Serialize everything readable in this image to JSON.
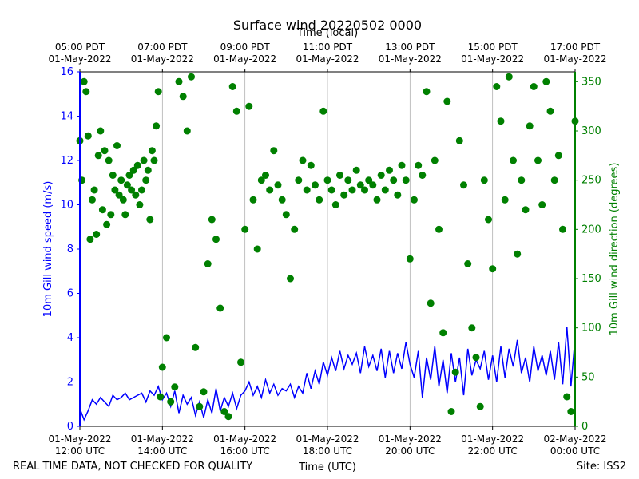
{
  "chart_data": {
    "type": "scatter",
    "title": "Surface wind 20220502 0000",
    "top_axis_label": "Time (local)",
    "xlabel": "Time (UTC)",
    "ylabel_left": "10m Gill wind speed (m/s)",
    "ylabel_right": "10m Gill wind direction (degrees)",
    "footer_left": "REAL TIME DATA, NOT CHECKED FOR QUALITY",
    "footer_right": "Site: ISS2",
    "x_range_hours": [
      12,
      24
    ],
    "ylim_left": [
      0,
      16
    ],
    "ylim_right": [
      0,
      360
    ],
    "left_ticks": [
      "0",
      "2",
      "4",
      "6",
      "8",
      "10",
      "12",
      "14",
      "16"
    ],
    "right_ticks": [
      "0",
      "50",
      "100",
      "150",
      "200",
      "250",
      "300",
      "350"
    ],
    "bottom_ticks": [
      {
        "hour": 12,
        "line1": "01-May-2022",
        "line2": "12:00 UTC"
      },
      {
        "hour": 14,
        "line1": "01-May-2022",
        "line2": "14:00 UTC"
      },
      {
        "hour": 16,
        "line1": "01-May-2022",
        "line2": "16:00 UTC"
      },
      {
        "hour": 18,
        "line1": "01-May-2022",
        "line2": "18:00 UTC"
      },
      {
        "hour": 20,
        "line1": "01-May-2022",
        "line2": "20:00 UTC"
      },
      {
        "hour": 22,
        "line1": "01-May-2022",
        "line2": "22:00 UTC"
      },
      {
        "hour": 24,
        "line1": "02-May-2022",
        "line2": "00:00 UTC"
      }
    ],
    "top_ticks": [
      {
        "hour": 12,
        "line1": "05:00 PDT",
        "line2": "01-May-2022"
      },
      {
        "hour": 14,
        "line1": "07:00 PDT",
        "line2": "01-May-2022"
      },
      {
        "hour": 16,
        "line1": "09:00 PDT",
        "line2": "01-May-2022"
      },
      {
        "hour": 18,
        "line1": "11:00 PDT",
        "line2": "01-May-2022"
      },
      {
        "hour": 20,
        "line1": "13:00 PDT",
        "line2": "01-May-2022"
      },
      {
        "hour": 22,
        "line1": "15:00 PDT",
        "line2": "01-May-2022"
      },
      {
        "hour": 24,
        "line1": "17:00 PDT",
        "line2": "01-May-2022"
      }
    ],
    "grid": "vertical",
    "series": [
      {
        "name": "10m Gill wind speed (m/s)",
        "axis": "left",
        "style": "line",
        "color": "#0000ff",
        "points": [
          [
            12.0,
            0.8
          ],
          [
            12.1,
            0.3
          ],
          [
            12.2,
            0.7
          ],
          [
            12.3,
            1.2
          ],
          [
            12.4,
            1.0
          ],
          [
            12.5,
            1.3
          ],
          [
            12.6,
            1.1
          ],
          [
            12.7,
            0.9
          ],
          [
            12.8,
            1.4
          ],
          [
            12.9,
            1.2
          ],
          [
            13.0,
            1.3
          ],
          [
            13.1,
            1.5
          ],
          [
            13.2,
            1.2
          ],
          [
            13.3,
            1.3
          ],
          [
            13.4,
            1.4
          ],
          [
            13.5,
            1.5
          ],
          [
            13.6,
            1.1
          ],
          [
            13.7,
            1.6
          ],
          [
            13.8,
            1.4
          ],
          [
            13.9,
            1.8
          ],
          [
            14.0,
            1.2
          ],
          [
            14.1,
            1.5
          ],
          [
            14.2,
            0.9
          ],
          [
            14.3,
            1.6
          ],
          [
            14.4,
            0.6
          ],
          [
            14.5,
            1.4
          ],
          [
            14.6,
            1.0
          ],
          [
            14.7,
            1.3
          ],
          [
            14.8,
            0.5
          ],
          [
            14.9,
            1.1
          ],
          [
            15.0,
            0.4
          ],
          [
            15.1,
            1.2
          ],
          [
            15.2,
            0.6
          ],
          [
            15.3,
            1.7
          ],
          [
            15.4,
            0.7
          ],
          [
            15.5,
            1.3
          ],
          [
            15.6,
            0.9
          ],
          [
            15.7,
            1.5
          ],
          [
            15.8,
            0.8
          ],
          [
            15.9,
            1.4
          ],
          [
            16.0,
            1.6
          ],
          [
            16.1,
            2.0
          ],
          [
            16.2,
            1.4
          ],
          [
            16.3,
            1.8
          ],
          [
            16.4,
            1.3
          ],
          [
            16.5,
            2.1
          ],
          [
            16.6,
            1.5
          ],
          [
            16.7,
            1.9
          ],
          [
            16.8,
            1.4
          ],
          [
            16.9,
            1.7
          ],
          [
            17.0,
            1.6
          ],
          [
            17.1,
            1.9
          ],
          [
            17.2,
            1.3
          ],
          [
            17.3,
            1.8
          ],
          [
            17.4,
            1.5
          ],
          [
            17.5,
            2.4
          ],
          [
            17.6,
            1.7
          ],
          [
            17.7,
            2.5
          ],
          [
            17.8,
            1.9
          ],
          [
            17.9,
            2.9
          ],
          [
            18.0,
            2.3
          ],
          [
            18.1,
            3.1
          ],
          [
            18.2,
            2.5
          ],
          [
            18.3,
            3.4
          ],
          [
            18.4,
            2.6
          ],
          [
            18.5,
            3.2
          ],
          [
            18.6,
            2.8
          ],
          [
            18.7,
            3.3
          ],
          [
            18.8,
            2.4
          ],
          [
            18.9,
            3.6
          ],
          [
            19.0,
            2.7
          ],
          [
            19.1,
            3.2
          ],
          [
            19.2,
            2.5
          ],
          [
            19.3,
            3.5
          ],
          [
            19.4,
            2.2
          ],
          [
            19.5,
            3.4
          ],
          [
            19.6,
            2.4
          ],
          [
            19.7,
            3.3
          ],
          [
            19.8,
            2.6
          ],
          [
            19.9,
            3.8
          ],
          [
            20.0,
            2.8
          ],
          [
            20.1,
            2.2
          ],
          [
            20.2,
            3.4
          ],
          [
            20.3,
            1.3
          ],
          [
            20.4,
            3.1
          ],
          [
            20.5,
            2.1
          ],
          [
            20.6,
            3.6
          ],
          [
            20.7,
            1.8
          ],
          [
            20.8,
            3.0
          ],
          [
            20.9,
            1.5
          ],
          [
            21.0,
            3.3
          ],
          [
            21.1,
            2.0
          ],
          [
            21.2,
            3.1
          ],
          [
            21.3,
            1.4
          ],
          [
            21.4,
            3.5
          ],
          [
            21.5,
            2.3
          ],
          [
            21.6,
            3.0
          ],
          [
            21.7,
            2.6
          ],
          [
            21.8,
            3.4
          ],
          [
            21.9,
            2.1
          ],
          [
            22.0,
            3.2
          ],
          [
            22.1,
            2.0
          ],
          [
            22.2,
            3.6
          ],
          [
            22.3,
            2.2
          ],
          [
            22.4,
            3.5
          ],
          [
            22.5,
            2.7
          ],
          [
            22.6,
            3.9
          ],
          [
            22.7,
            2.4
          ],
          [
            22.8,
            3.1
          ],
          [
            22.9,
            2.0
          ],
          [
            23.0,
            3.6
          ],
          [
            23.1,
            2.5
          ],
          [
            23.2,
            3.2
          ],
          [
            23.3,
            2.3
          ],
          [
            23.4,
            3.4
          ],
          [
            23.5,
            2.1
          ],
          [
            23.6,
            3.8
          ],
          [
            23.7,
            1.9
          ],
          [
            23.8,
            4.5
          ],
          [
            23.9,
            1.8
          ],
          [
            24.0,
            4.0
          ]
        ]
      },
      {
        "name": "10m Gill wind direction (degrees)",
        "axis": "right",
        "style": "markers",
        "color": "#008000",
        "points": [
          [
            12.0,
            290
          ],
          [
            12.05,
            250
          ],
          [
            12.1,
            350
          ],
          [
            12.15,
            340
          ],
          [
            12.2,
            295
          ],
          [
            12.25,
            190
          ],
          [
            12.3,
            230
          ],
          [
            12.35,
            240
          ],
          [
            12.4,
            195
          ],
          [
            12.45,
            275
          ],
          [
            12.5,
            300
          ],
          [
            12.55,
            220
          ],
          [
            12.6,
            280
          ],
          [
            12.65,
            205
          ],
          [
            12.7,
            270
          ],
          [
            12.75,
            215
          ],
          [
            12.8,
            255
          ],
          [
            12.85,
            240
          ],
          [
            12.9,
            285
          ],
          [
            12.95,
            235
          ],
          [
            13.0,
            250
          ],
          [
            13.05,
            230
          ],
          [
            13.1,
            215
          ],
          [
            13.15,
            245
          ],
          [
            13.2,
            255
          ],
          [
            13.25,
            240
          ],
          [
            13.3,
            260
          ],
          [
            13.35,
            235
          ],
          [
            13.4,
            265
          ],
          [
            13.45,
            225
          ],
          [
            13.5,
            240
          ],
          [
            13.55,
            270
          ],
          [
            13.6,
            250
          ],
          [
            13.65,
            260
          ],
          [
            13.7,
            210
          ],
          [
            13.75,
            280
          ],
          [
            13.8,
            270
          ],
          [
            13.85,
            305
          ],
          [
            13.9,
            340
          ],
          [
            13.95,
            30
          ],
          [
            14.0,
            60
          ],
          [
            14.1,
            90
          ],
          [
            14.2,
            25
          ],
          [
            14.3,
            40
          ],
          [
            14.4,
            350
          ],
          [
            14.5,
            335
          ],
          [
            14.6,
            300
          ],
          [
            14.7,
            355
          ],
          [
            14.8,
            80
          ],
          [
            14.9,
            20
          ],
          [
            15.0,
            35
          ],
          [
            15.1,
            165
          ],
          [
            15.2,
            210
          ],
          [
            15.3,
            190
          ],
          [
            15.4,
            120
          ],
          [
            15.5,
            15
          ],
          [
            15.6,
            10
          ],
          [
            15.7,
            345
          ],
          [
            15.8,
            320
          ],
          [
            15.9,
            65
          ],
          [
            16.0,
            200
          ],
          [
            16.1,
            325
          ],
          [
            16.2,
            230
          ],
          [
            16.3,
            180
          ],
          [
            16.4,
            250
          ],
          [
            16.5,
            255
          ],
          [
            16.6,
            240
          ],
          [
            16.7,
            280
          ],
          [
            16.8,
            245
          ],
          [
            16.9,
            230
          ],
          [
            17.0,
            215
          ],
          [
            17.1,
            150
          ],
          [
            17.2,
            200
          ],
          [
            17.3,
            250
          ],
          [
            17.4,
            270
          ],
          [
            17.5,
            240
          ],
          [
            17.6,
            265
          ],
          [
            17.7,
            245
          ],
          [
            17.8,
            230
          ],
          [
            17.9,
            320
          ],
          [
            18.0,
            250
          ],
          [
            18.1,
            240
          ],
          [
            18.2,
            225
          ],
          [
            18.3,
            255
          ],
          [
            18.4,
            235
          ],
          [
            18.5,
            250
          ],
          [
            18.6,
            240
          ],
          [
            18.7,
            260
          ],
          [
            18.8,
            245
          ],
          [
            18.9,
            240
          ],
          [
            19.0,
            250
          ],
          [
            19.1,
            245
          ],
          [
            19.2,
            230
          ],
          [
            19.3,
            255
          ],
          [
            19.4,
            240
          ],
          [
            19.5,
            260
          ],
          [
            19.6,
            250
          ],
          [
            19.7,
            235
          ],
          [
            19.8,
            265
          ],
          [
            19.9,
            250
          ],
          [
            20.0,
            170
          ],
          [
            20.1,
            230
          ],
          [
            20.2,
            265
          ],
          [
            20.3,
            255
          ],
          [
            20.4,
            340
          ],
          [
            20.5,
            125
          ],
          [
            20.6,
            270
          ],
          [
            20.7,
            200
          ],
          [
            20.8,
            95
          ],
          [
            20.9,
            330
          ],
          [
            21.0,
            15
          ],
          [
            21.1,
            55
          ],
          [
            21.2,
            290
          ],
          [
            21.3,
            245
          ],
          [
            21.4,
            165
          ],
          [
            21.5,
            100
          ],
          [
            21.6,
            70
          ],
          [
            21.7,
            20
          ],
          [
            21.8,
            250
          ],
          [
            21.9,
            210
          ],
          [
            22.0,
            160
          ],
          [
            22.1,
            345
          ],
          [
            22.2,
            310
          ],
          [
            22.3,
            230
          ],
          [
            22.4,
            355
          ],
          [
            22.5,
            270
          ],
          [
            22.6,
            175
          ],
          [
            22.7,
            250
          ],
          [
            22.8,
            220
          ],
          [
            22.9,
            305
          ],
          [
            23.0,
            345
          ],
          [
            23.1,
            270
          ],
          [
            23.2,
            225
          ],
          [
            23.3,
            350
          ],
          [
            23.4,
            320
          ],
          [
            23.5,
            250
          ],
          [
            23.6,
            275
          ],
          [
            23.7,
            200
          ],
          [
            23.8,
            30
          ],
          [
            23.9,
            15
          ],
          [
            24.0,
            310
          ]
        ]
      }
    ]
  }
}
